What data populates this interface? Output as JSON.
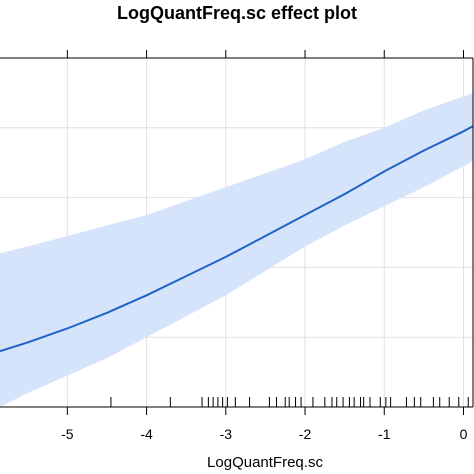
{
  "chart_data": {
    "type": "line",
    "title": "LogQuantFreq.sc effect plot",
    "xlabel": "LogQuantFreq.sc",
    "ylabel": "",
    "xlim": [
      -5.85,
      0.12
    ],
    "ylim": [
      0,
      1
    ],
    "x_ticks": [
      -5,
      -4,
      -3,
      -2,
      -1,
      0
    ],
    "x_tick_labels": [
      "-5",
      "-4",
      "-3",
      "-2",
      "-1",
      "0"
    ],
    "grid": true,
    "series": [
      {
        "x": [
          -5.85,
          -5.5,
          -5.0,
          -4.5,
          -4.0,
          -3.5,
          -3.0,
          -2.5,
          -2.0,
          -1.5,
          -1.0,
          -0.5,
          0.0,
          0.12
        ],
        "y": [
          0.16,
          0.185,
          0.225,
          0.27,
          0.32,
          0.375,
          0.43,
          0.49,
          0.55,
          0.61,
          0.675,
          0.735,
          0.79,
          0.805
        ],
        "lower": [
          0.0,
          0.04,
          0.09,
          0.14,
          0.2,
          0.26,
          0.32,
          0.39,
          0.46,
          0.52,
          0.575,
          0.63,
          0.69,
          0.705
        ],
        "upper": [
          0.44,
          0.46,
          0.49,
          0.52,
          0.55,
          0.59,
          0.63,
          0.67,
          0.71,
          0.76,
          0.8,
          0.85,
          0.89,
          0.9
        ]
      }
    ],
    "rug": [
      -4.45,
      -3.7,
      -3.3,
      -3.22,
      -3.16,
      -3.1,
      -3.04,
      -2.98,
      -2.88,
      -2.7,
      -2.45,
      -2.36,
      -2.25,
      -2.2,
      -2.12,
      -2.05,
      -1.9,
      -1.75,
      -1.66,
      -1.6,
      -1.52,
      -1.44,
      -1.38,
      -1.3,
      -1.26,
      -1.18,
      -1.05,
      -0.98,
      -0.92,
      -0.72,
      -0.62,
      -0.54,
      -0.38,
      -0.3,
      -0.18,
      -0.06,
      0.06
    ],
    "colors": {
      "line": "#1f63c6",
      "band": "#d6e4fb",
      "grid": "#e0e0e0",
      "frame": "#000000"
    }
  }
}
